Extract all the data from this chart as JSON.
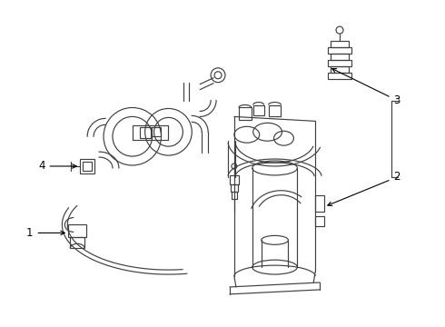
{
  "bg_color": "#ffffff",
  "line_color": "#404040",
  "figsize": [
    4.9,
    3.6
  ],
  "dpi": 100,
  "label_fontsize": 8.5
}
